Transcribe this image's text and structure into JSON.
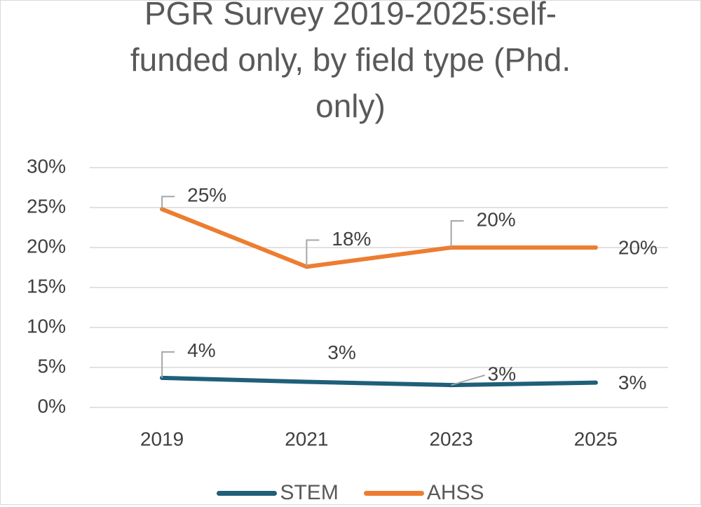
{
  "chart_data": {
    "type": "line",
    "title": "PGR Survey 2019-2025:self-funded only, by field type (Phd. only)",
    "title_lines": [
      "PGR Survey 2019-2025:self-",
      "funded only, by field type (Phd.",
      "only)"
    ],
    "categories": [
      "2019",
      "2021",
      "2023",
      "2025"
    ],
    "ylim": [
      0,
      30
    ],
    "yticks": [
      0,
      5,
      10,
      15,
      20,
      25,
      30
    ],
    "ytick_labels": [
      "0%",
      "5%",
      "10%",
      "15%",
      "20%",
      "25%",
      "30%"
    ],
    "grid": true,
    "legend_position": "bottom",
    "series": [
      {
        "name": "STEM",
        "color": "#1f5f7a",
        "values": [
          3.7,
          3.2,
          2.8,
          3.1
        ],
        "labels": [
          "4%",
          "3%",
          "3%",
          "3%"
        ]
      },
      {
        "name": "AHSS",
        "color": "#ed7d31",
        "values": [
          24.8,
          17.6,
          20.0,
          20.0
        ],
        "labels": [
          "25%",
          "18%",
          "20%",
          "20%"
        ]
      }
    ]
  }
}
